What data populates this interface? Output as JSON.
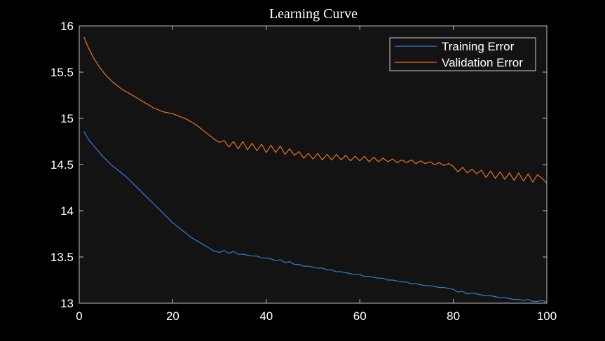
{
  "chart_data": {
    "type": "line",
    "title": "Learning Curve",
    "xlabel": "",
    "ylabel": "",
    "xlim": [
      0,
      100
    ],
    "ylim": [
      13,
      16
    ],
    "xticks": [
      0,
      20,
      40,
      60,
      80,
      100
    ],
    "yticks": [
      13,
      13.5,
      14,
      14.5,
      15,
      15.5,
      16
    ],
    "grid": false,
    "legend_position": "top-right",
    "colors": {
      "background": "#000000",
      "axes_background": "#131313",
      "axis": "#bdbdbd",
      "text": "#ffffff"
    },
    "series": [
      {
        "name": "Training Error",
        "color": "#2f7fd6",
        "x": [
          1,
          2,
          3,
          4,
          5,
          6,
          7,
          8,
          9,
          10,
          11,
          12,
          13,
          14,
          15,
          16,
          17,
          18,
          19,
          20,
          21,
          22,
          23,
          24,
          25,
          26,
          27,
          28,
          29,
          30,
          31,
          32,
          33,
          34,
          35,
          36,
          37,
          38,
          39,
          40,
          41,
          42,
          43,
          44,
          45,
          46,
          47,
          48,
          49,
          50,
          51,
          52,
          53,
          54,
          55,
          56,
          57,
          58,
          59,
          60,
          61,
          62,
          63,
          64,
          65,
          66,
          67,
          68,
          69,
          70,
          71,
          72,
          73,
          74,
          75,
          76,
          77,
          78,
          79,
          80,
          81,
          82,
          83,
          84,
          85,
          86,
          87,
          88,
          89,
          90,
          91,
          92,
          93,
          94,
          95,
          96,
          97,
          98,
          99,
          100
        ],
        "y": [
          14.86,
          14.77,
          14.71,
          14.65,
          14.59,
          14.54,
          14.49,
          14.45,
          14.41,
          14.37,
          14.32,
          14.27,
          14.22,
          14.17,
          14.12,
          14.07,
          14.02,
          13.97,
          13.92,
          13.87,
          13.83,
          13.79,
          13.75,
          13.71,
          13.68,
          13.65,
          13.62,
          13.59,
          13.56,
          13.55,
          13.57,
          13.54,
          13.56,
          13.53,
          13.53,
          13.52,
          13.51,
          13.51,
          13.49,
          13.49,
          13.48,
          13.46,
          13.47,
          13.44,
          13.45,
          13.42,
          13.42,
          13.4,
          13.4,
          13.39,
          13.38,
          13.38,
          13.36,
          13.36,
          13.34,
          13.34,
          13.33,
          13.32,
          13.31,
          13.31,
          13.29,
          13.29,
          13.28,
          13.27,
          13.27,
          13.25,
          13.25,
          13.24,
          13.23,
          13.23,
          13.21,
          13.21,
          13.2,
          13.19,
          13.19,
          13.18,
          13.17,
          13.17,
          13.16,
          13.15,
          13.12,
          13.13,
          13.1,
          13.11,
          13.1,
          13.09,
          13.08,
          13.08,
          13.07,
          13.06,
          13.06,
          13.05,
          13.04,
          13.04,
          13.03,
          13.04,
          13.02,
          13.02,
          13.03,
          13.01
        ]
      },
      {
        "name": "Validation Error",
        "color": "#e8702a",
        "x": [
          1,
          2,
          3,
          4,
          5,
          6,
          7,
          8,
          9,
          10,
          11,
          12,
          13,
          14,
          15,
          16,
          17,
          18,
          19,
          20,
          21,
          22,
          23,
          24,
          25,
          26,
          27,
          28,
          29,
          30,
          31,
          32,
          33,
          34,
          35,
          36,
          37,
          38,
          39,
          40,
          41,
          42,
          43,
          44,
          45,
          46,
          47,
          48,
          49,
          50,
          51,
          52,
          53,
          54,
          55,
          56,
          57,
          58,
          59,
          60,
          61,
          62,
          63,
          64,
          65,
          66,
          67,
          68,
          69,
          70,
          71,
          72,
          73,
          74,
          75,
          76,
          77,
          78,
          79,
          80,
          81,
          82,
          83,
          84,
          85,
          86,
          87,
          88,
          89,
          90,
          91,
          92,
          93,
          94,
          95,
          96,
          97,
          98,
          99,
          100
        ],
        "y": [
          15.88,
          15.76,
          15.66,
          15.58,
          15.51,
          15.45,
          15.4,
          15.36,
          15.32,
          15.29,
          15.26,
          15.23,
          15.2,
          15.17,
          15.14,
          15.11,
          15.09,
          15.07,
          15.06,
          15.05,
          15.03,
          15.01,
          14.99,
          14.96,
          14.93,
          14.89,
          14.85,
          14.81,
          14.77,
          14.74,
          14.76,
          14.69,
          14.75,
          14.67,
          14.75,
          14.66,
          14.73,
          14.65,
          14.72,
          14.63,
          14.71,
          14.63,
          14.7,
          14.61,
          14.67,
          14.6,
          14.64,
          14.57,
          14.62,
          14.56,
          14.62,
          14.55,
          14.61,
          14.55,
          14.61,
          14.55,
          14.6,
          14.54,
          14.59,
          14.54,
          14.59,
          14.53,
          14.58,
          14.53,
          14.57,
          14.53,
          14.56,
          14.52,
          14.55,
          14.52,
          14.55,
          14.51,
          14.54,
          14.51,
          14.53,
          14.5,
          14.52,
          14.49,
          14.51,
          14.48,
          14.42,
          14.47,
          14.41,
          14.45,
          14.4,
          14.44,
          14.36,
          14.43,
          14.35,
          14.42,
          14.34,
          14.41,
          14.33,
          14.41,
          14.32,
          14.4,
          14.31,
          14.39,
          14.35,
          14.3
        ]
      }
    ]
  }
}
